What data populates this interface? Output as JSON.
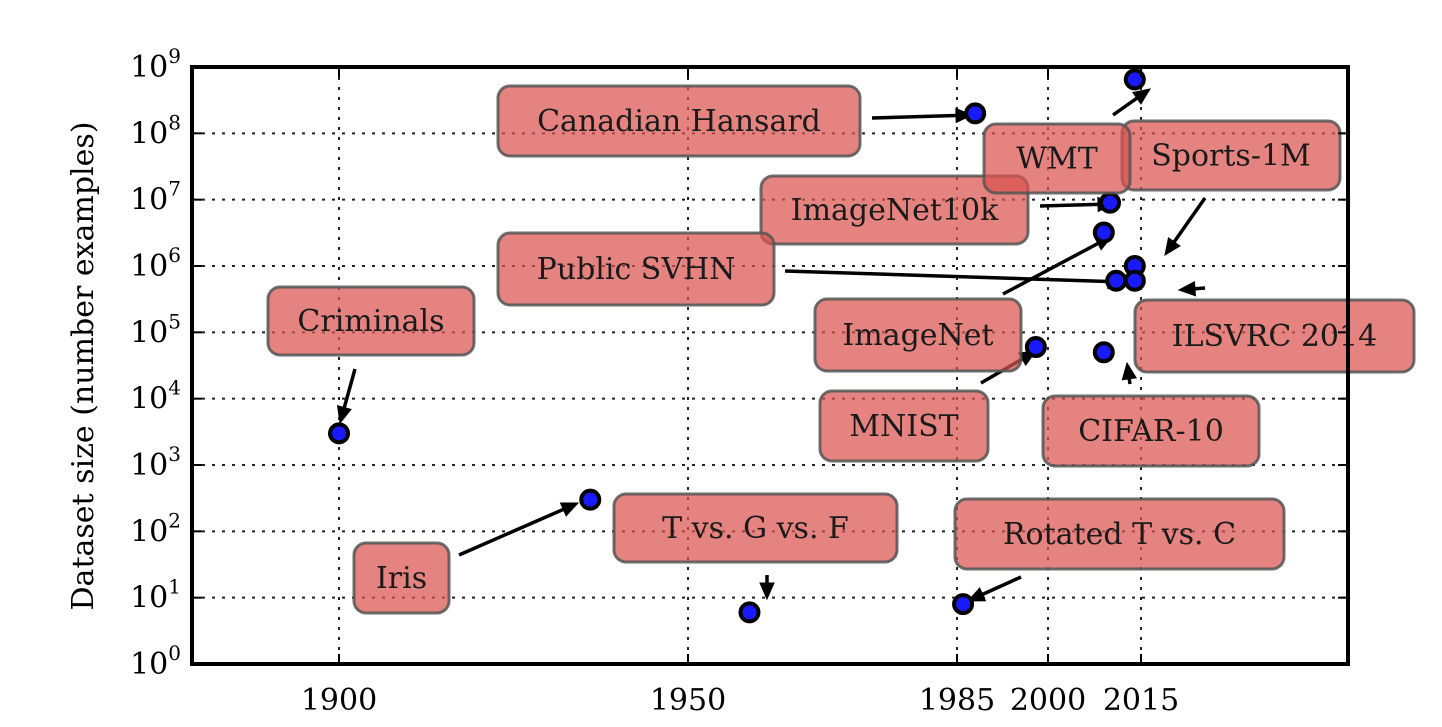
{
  "chart_data": {
    "type": "scatter",
    "title": "",
    "xlabel": "",
    "ylabel": "Dataset size (number examples)",
    "x_scale": "piecewise-linear",
    "x_ticks": [
      {
        "value": 1900,
        "label": "1900"
      },
      {
        "value": 1950,
        "label": "1950"
      },
      {
        "value": 1985,
        "label": "1985"
      },
      {
        "value": 2000,
        "label": "2000"
      },
      {
        "value": 2015,
        "label": "2015"
      }
    ],
    "y_scale": "log",
    "ylim": [
      1,
      1000000000
    ],
    "y_ticks": [
      {
        "value": 1,
        "base": "10",
        "exp": "0"
      },
      {
        "value": 10,
        "base": "10",
        "exp": "1"
      },
      {
        "value": 100,
        "base": "10",
        "exp": "2"
      },
      {
        "value": 1000,
        "base": "10",
        "exp": "3"
      },
      {
        "value": 10000,
        "base": "10",
        "exp": "4"
      },
      {
        "value": 100000,
        "base": "10",
        "exp": "5"
      },
      {
        "value": 1000000,
        "base": "10",
        "exp": "6"
      },
      {
        "value": 10000000,
        "base": "10",
        "exp": "7"
      },
      {
        "value": 100000000,
        "base": "10",
        "exp": "8"
      },
      {
        "value": 1000000000,
        "base": "10",
        "exp": "9"
      }
    ],
    "grid": true,
    "point_color": "#1a1aff",
    "box_color": "#d9534f",
    "points": [
      {
        "x": 1900,
        "y": 3000
      },
      {
        "x": 1936,
        "y": 300
      },
      {
        "x": 1958,
        "y": 6
      },
      {
        "x": 1986,
        "y": 8
      },
      {
        "x": 1988,
        "y": 200000000
      },
      {
        "x": 1998,
        "y": 60000
      },
      {
        "x": 2009,
        "y": 50000
      },
      {
        "x": 2009,
        "y": 3200000
      },
      {
        "x": 2010,
        "y": 9000000
      },
      {
        "x": 2011,
        "y": 600000
      },
      {
        "x": 2014,
        "y": 1000000
      },
      {
        "x": 2014,
        "y": 600000
      },
      {
        "x": 2014,
        "y": 650000000
      }
    ],
    "annotations": [
      {
        "text": "Criminals"
      },
      {
        "text": "Iris"
      },
      {
        "text": "T vs. G vs. F"
      },
      {
        "text": "Rotated T vs. C"
      },
      {
        "text": "Canadian Hansard"
      },
      {
        "text": "MNIST"
      },
      {
        "text": "CIFAR-10"
      },
      {
        "text": "ImageNet"
      },
      {
        "text": "ImageNet10k"
      },
      {
        "text": "Public SVHN"
      },
      {
        "text": "ILSVRC 2014"
      },
      {
        "text": "Sports-1M"
      },
      {
        "text": "WMT"
      }
    ]
  }
}
